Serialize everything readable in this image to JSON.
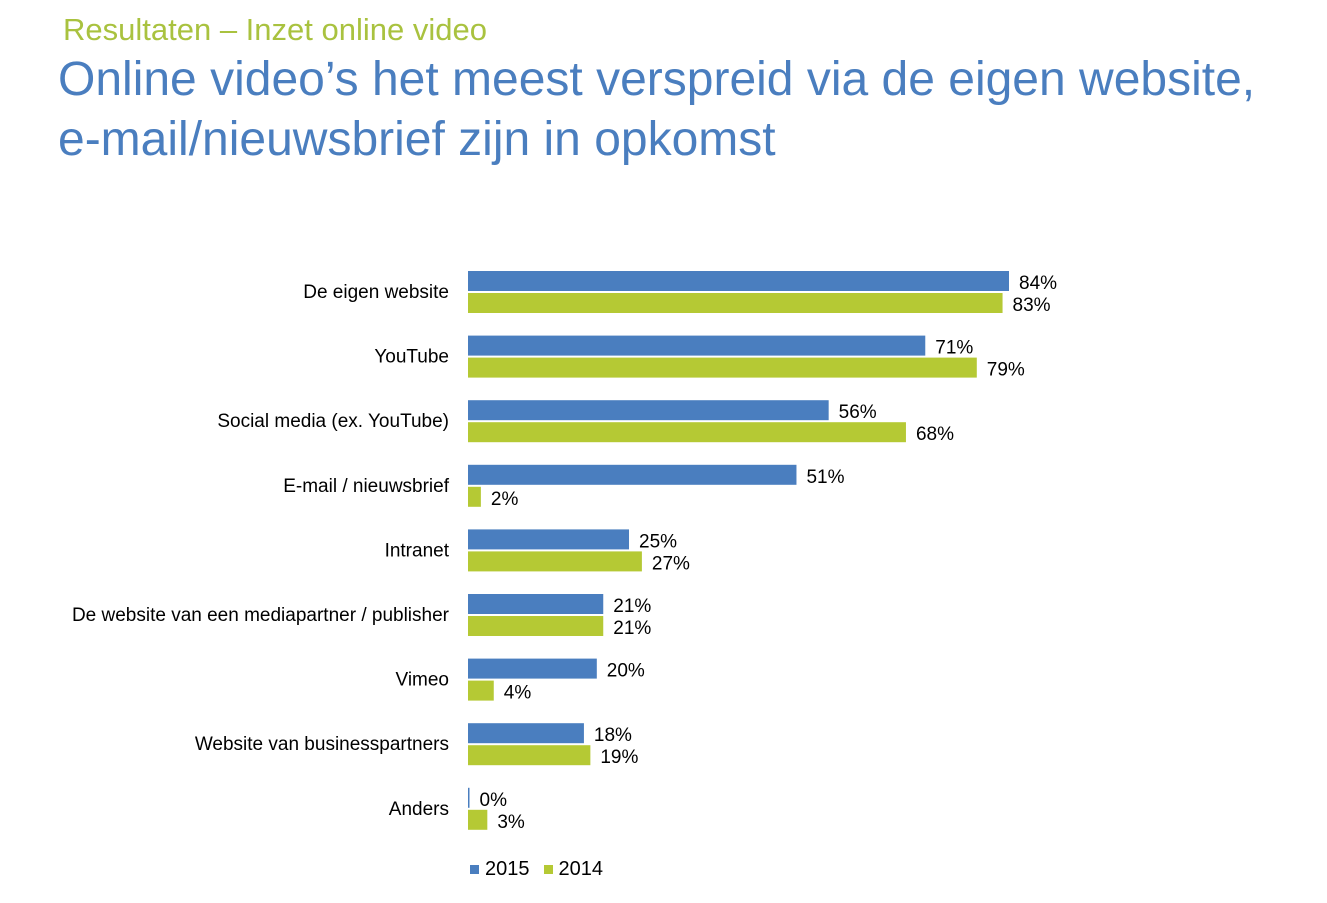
{
  "header": {
    "subtitle": "Resultaten – Inzet online video",
    "title_line1": "Online video’s het meest verspreid via de eigen website,",
    "title_line2": "e-mail/nieuwsbrief zijn in opkomst"
  },
  "chart_data": {
    "type": "bar",
    "orientation": "horizontal",
    "title": "",
    "xlabel": "",
    "ylabel": "",
    "xlim": [
      0,
      100
    ],
    "grid": false,
    "legend_position": "bottom",
    "categories": [
      "De eigen website",
      "YouTube",
      "Social media (ex. YouTube)",
      "E-mail / nieuwsbrief",
      "Intranet",
      "De website van een mediapartner / publisher",
      "Vimeo",
      "Website van businesspartners",
      "Anders"
    ],
    "series": [
      {
        "name": "2015",
        "color": "#4a7ebf",
        "values": [
          84,
          71,
          56,
          51,
          25,
          21,
          20,
          18,
          0
        ]
      },
      {
        "name": "2014",
        "color": "#b5c934",
        "values": [
          83,
          79,
          68,
          2,
          27,
          21,
          4,
          19,
          3
        ]
      }
    ]
  }
}
